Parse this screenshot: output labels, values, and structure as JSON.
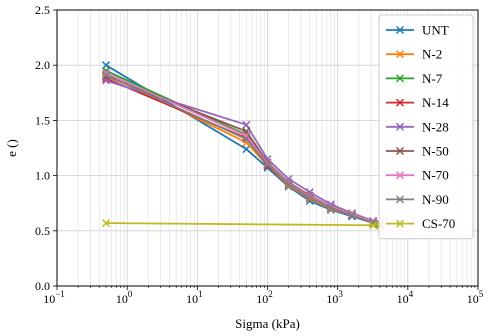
{
  "chart_data": {
    "type": "line",
    "title": "",
    "xlabel": "Sigma (kPa)",
    "ylabel": "e ()",
    "xscale": "log",
    "xlim": [
      0.1,
      100000
    ],
    "ylim": [
      0.0,
      2.5
    ],
    "x_ticks": [
      {
        "value": 0.1,
        "base": "10",
        "exp": "−1"
      },
      {
        "value": 1,
        "base": "10",
        "exp": "0"
      },
      {
        "value": 10,
        "base": "10",
        "exp": "1"
      },
      {
        "value": 100,
        "base": "10",
        "exp": "2"
      },
      {
        "value": 1000,
        "base": "10",
        "exp": "3"
      },
      {
        "value": 10000,
        "base": "10",
        "exp": "4"
      },
      {
        "value": 100000,
        "base": "10",
        "exp": "5"
      }
    ],
    "y_ticks": [
      {
        "value": 0.0,
        "label": "0.0"
      },
      {
        "value": 0.5,
        "label": "0.5"
      },
      {
        "value": 1.0,
        "label": "1.0"
      },
      {
        "value": 1.5,
        "label": "1.5"
      },
      {
        "value": 2.0,
        "label": "2.0"
      },
      {
        "value": 2.5,
        "label": "2.5"
      }
    ],
    "grid": true,
    "grid_minor": true,
    "legend_position": "upper-right",
    "marker": "x",
    "series": [
      {
        "name": "UNT",
        "color": "#1f77b4",
        "x": [
          0.5,
          50,
          100,
          200,
          400,
          800,
          1600,
          3200,
          4000
        ],
        "y": [
          2.0,
          1.24,
          1.07,
          0.9,
          0.77,
          0.69,
          0.63,
          0.57,
          0.55
        ]
      },
      {
        "name": "N-2",
        "color": "#ff7f0e",
        "x": [
          0.5,
          50,
          100,
          200,
          400,
          800,
          1600,
          3200,
          4000
        ],
        "y": [
          1.92,
          1.3,
          1.09,
          0.91,
          0.79,
          0.7,
          0.64,
          0.57,
          0.55
        ]
      },
      {
        "name": "N-7",
        "color": "#2ca02c",
        "x": [
          0.5,
          50,
          100,
          200,
          400,
          800,
          1600,
          3200,
          4000
        ],
        "y": [
          1.95,
          1.37,
          1.1,
          0.93,
          0.8,
          0.71,
          0.65,
          0.58,
          0.56
        ]
      },
      {
        "name": "N-14",
        "color": "#d62728",
        "x": [
          0.5,
          50,
          100,
          200,
          400,
          800,
          1600,
          3200,
          4000
        ],
        "y": [
          1.88,
          1.34,
          1.09,
          0.92,
          0.8,
          0.71,
          0.64,
          0.57,
          0.55
        ]
      },
      {
        "name": "N-28",
        "color": "#9467bd",
        "x": [
          0.5,
          50,
          100,
          200,
          400,
          800,
          1600,
          3200,
          4000
        ],
        "y": [
          1.86,
          1.46,
          1.15,
          0.97,
          0.85,
          0.74,
          0.66,
          0.59,
          0.56
        ]
      },
      {
        "name": "N-50",
        "color": "#8c564b",
        "x": [
          0.5,
          50,
          100,
          200,
          400,
          800,
          1600,
          3200,
          4000
        ],
        "y": [
          1.9,
          1.4,
          1.12,
          0.94,
          0.82,
          0.72,
          0.65,
          0.58,
          0.56
        ]
      },
      {
        "name": "N-70",
        "color": "#e377c2",
        "x": [
          0.5,
          50,
          100,
          200,
          400,
          800,
          1600,
          3200,
          4000
        ],
        "y": [
          1.93,
          1.36,
          1.11,
          0.93,
          0.81,
          0.72,
          0.65,
          0.58,
          0.55
        ]
      },
      {
        "name": "N-90",
        "color": "#7f7f7f",
        "x": [
          0.5,
          50,
          100,
          200,
          400,
          800,
          1600,
          3200,
          4000
        ],
        "y": [
          1.91,
          1.33,
          1.1,
          0.92,
          0.8,
          0.71,
          0.64,
          0.57,
          0.55
        ]
      },
      {
        "name": "CS-70",
        "color": "#bcbd22",
        "x": [
          0.5,
          3200,
          4000
        ],
        "y": [
          0.57,
          0.55,
          0.55
        ]
      }
    ]
  }
}
